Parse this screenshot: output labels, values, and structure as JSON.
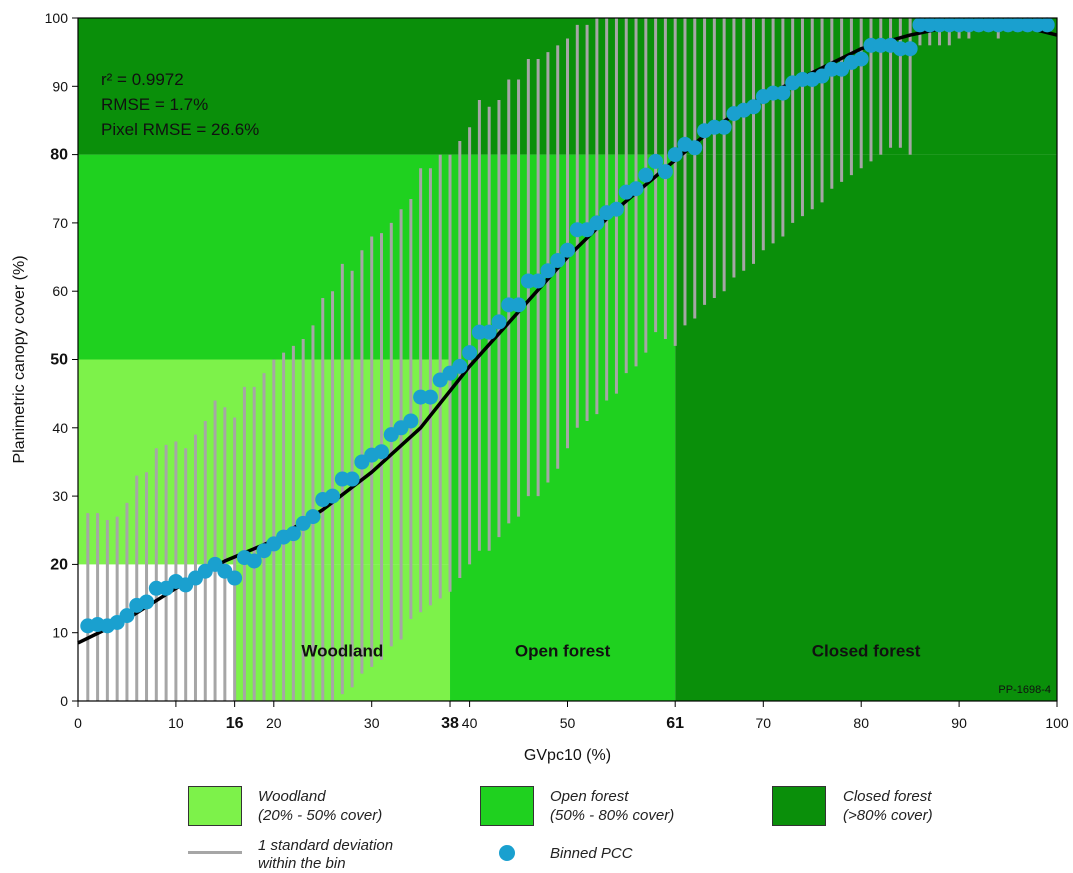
{
  "chart_data": {
    "type": "scatter",
    "xlabel": "GVpc10 (%)",
    "ylabel": "Planimetric canopy cover (%)",
    "xlim": [
      0,
      100
    ],
    "ylim": [
      0,
      100
    ],
    "x_ticks": [
      {
        "value": 0,
        "label": "0",
        "bold": false
      },
      {
        "value": 10,
        "label": "10",
        "bold": false
      },
      {
        "value": 16,
        "label": "16",
        "bold": true
      },
      {
        "value": 20,
        "label": "20",
        "bold": false
      },
      {
        "value": 30,
        "label": "30",
        "bold": false
      },
      {
        "value": 38,
        "label": "38",
        "bold": true
      },
      {
        "value": 40,
        "label": "40",
        "bold": false
      },
      {
        "value": 50,
        "label": "50",
        "bold": false
      },
      {
        "value": 61,
        "label": "61",
        "bold": true
      },
      {
        "value": 70,
        "label": "70",
        "bold": false
      },
      {
        "value": 80,
        "label": "80",
        "bold": false
      },
      {
        "value": 90,
        "label": "90",
        "bold": false
      },
      {
        "value": 100,
        "label": "100",
        "bold": false
      }
    ],
    "y_ticks": [
      {
        "value": 0,
        "label": "0",
        "bold": false
      },
      {
        "value": 10,
        "label": "10",
        "bold": false
      },
      {
        "value": 20,
        "label": "20",
        "bold": true
      },
      {
        "value": 30,
        "label": "30",
        "bold": false
      },
      {
        "value": 40,
        "label": "40",
        "bold": false
      },
      {
        "value": 50,
        "label": "50",
        "bold": true
      },
      {
        "value": 60,
        "label": "60",
        "bold": false
      },
      {
        "value": 70,
        "label": "70",
        "bold": false
      },
      {
        "value": 80,
        "label": "80",
        "bold": true
      },
      {
        "value": 90,
        "label": "90",
        "bold": false
      },
      {
        "value": 100,
        "label": "100",
        "bold": false
      }
    ],
    "regions": [
      {
        "x0": 0,
        "x1": 16,
        "y0": 0,
        "y1": 20,
        "color": "#ffffff"
      },
      {
        "x0": 0,
        "x1": 38,
        "y0": 20,
        "y1": 50,
        "color": "#7df24a"
      },
      {
        "x0": 16,
        "x1": 38,
        "y0": 0,
        "y1": 20,
        "color": "#7df24a"
      },
      {
        "x0": 0,
        "x1": 61,
        "y0": 50,
        "y1": 80,
        "color": "#1fd11f"
      },
      {
        "x0": 38,
        "x1": 61,
        "y0": 0,
        "y1": 50,
        "color": "#1fd11f"
      },
      {
        "x0": 0,
        "x1": 100,
        "y0": 80,
        "y1": 100,
        "color": "#0a8f0a"
      },
      {
        "x0": 61,
        "x1": 100,
        "y0": 0,
        "y1": 80,
        "color": "#0a8f0a"
      }
    ],
    "zone_labels": [
      {
        "text": "Woodland",
        "x": 27,
        "y": 6.5
      },
      {
        "text": "Open forest",
        "x": 49.5,
        "y": 6.5
      },
      {
        "text": "Closed forest",
        "x": 80.5,
        "y": 6.5
      }
    ],
    "stats": [
      "r² = 0.9972",
      "RMSE = 1.7%",
      "Pixel RMSE = 26.6%"
    ],
    "corner_label": "PP-1698-4",
    "fit_curve": [
      [
        0,
        8.5
      ],
      [
        5,
        12
      ],
      [
        10,
        16.5
      ],
      [
        15,
        20.5
      ],
      [
        20,
        23.5
      ],
      [
        25,
        28
      ],
      [
        30,
        33.5
      ],
      [
        35,
        40
      ],
      [
        40,
        49
      ],
      [
        45,
        57
      ],
      [
        50,
        65
      ],
      [
        55,
        72
      ],
      [
        60,
        78
      ],
      [
        65,
        84
      ],
      [
        70,
        88.5
      ],
      [
        75,
        92
      ],
      [
        80,
        95.5
      ],
      [
        85,
        97.5
      ],
      [
        90,
        99
      ],
      [
        95,
        99.3
      ],
      [
        100,
        97.5
      ]
    ],
    "series": [
      {
        "name": "Binned PCC",
        "color": "#1aa0cf",
        "points": [
          [
            1,
            11
          ],
          [
            2,
            11.2
          ],
          [
            3,
            11
          ],
          [
            4,
            11.5
          ],
          [
            5,
            12.5
          ],
          [
            6,
            14
          ],
          [
            7,
            14.5
          ],
          [
            8,
            16.5
          ],
          [
            9,
            16.5
          ],
          [
            10,
            17.5
          ],
          [
            11,
            17
          ],
          [
            12,
            18
          ],
          [
            13,
            19
          ],
          [
            14,
            20
          ],
          [
            15,
            19
          ],
          [
            16,
            18
          ],
          [
            17,
            21
          ],
          [
            18,
            20.5
          ],
          [
            19,
            22
          ],
          [
            20,
            23
          ],
          [
            21,
            24
          ],
          [
            22,
            24.5
          ],
          [
            23,
            26
          ],
          [
            24,
            27
          ],
          [
            25,
            29.5
          ],
          [
            26,
            30
          ],
          [
            27,
            32.5
          ],
          [
            28,
            32.5
          ],
          [
            29,
            35
          ],
          [
            30,
            36
          ],
          [
            31,
            36.5
          ],
          [
            32,
            39
          ],
          [
            33,
            40
          ],
          [
            34,
            41
          ],
          [
            35,
            44.5
          ],
          [
            36,
            44.5
          ],
          [
            37,
            47
          ],
          [
            38,
            48
          ],
          [
            39,
            49
          ],
          [
            40,
            51
          ],
          [
            41,
            54
          ],
          [
            42,
            54
          ],
          [
            43,
            55.5
          ],
          [
            44,
            58
          ],
          [
            45,
            58
          ],
          [
            46,
            61.5
          ],
          [
            47,
            61.5
          ],
          [
            48,
            63
          ],
          [
            49,
            64.5
          ],
          [
            50,
            66
          ],
          [
            51,
            69
          ],
          [
            52,
            69
          ],
          [
            53,
            70
          ],
          [
            54,
            71.5
          ],
          [
            55,
            72
          ],
          [
            56,
            74.5
          ],
          [
            57,
            75
          ],
          [
            58,
            77
          ],
          [
            59,
            79
          ],
          [
            60,
            77.5
          ],
          [
            61,
            80
          ],
          [
            62,
            81.5
          ],
          [
            63,
            81
          ],
          [
            64,
            83.5
          ],
          [
            65,
            84
          ],
          [
            66,
            84
          ],
          [
            67,
            86
          ],
          [
            68,
            86.5
          ],
          [
            69,
            87
          ],
          [
            70,
            88.5
          ],
          [
            71,
            89
          ],
          [
            72,
            89
          ],
          [
            73,
            90.5
          ],
          [
            74,
            91
          ],
          [
            75,
            91
          ],
          [
            76,
            91.5
          ],
          [
            77,
            92.5
          ],
          [
            78,
            92.5
          ],
          [
            79,
            93.5
          ],
          [
            80,
            94
          ],
          [
            81,
            96
          ],
          [
            82,
            96
          ],
          [
            83,
            96
          ],
          [
            84,
            95.5
          ],
          [
            85,
            95.5
          ],
          [
            86,
            99
          ],
          [
            87,
            99
          ],
          [
            88,
            99
          ],
          [
            89,
            99
          ],
          [
            90,
            99
          ],
          [
            91,
            99
          ],
          [
            92,
            99
          ],
          [
            93,
            99
          ],
          [
            94,
            99
          ],
          [
            95,
            99
          ],
          [
            96,
            99
          ],
          [
            97,
            99
          ],
          [
            98,
            99
          ],
          [
            99,
            99
          ]
        ]
      },
      {
        "name": "1 standard deviation within the bin",
        "color": "#a6a6a6",
        "sd_bars": [
          [
            1,
            0,
            27.5
          ],
          [
            2,
            0,
            27.5
          ],
          [
            3,
            0,
            26.5
          ],
          [
            4,
            0,
            27
          ],
          [
            5,
            0,
            29
          ],
          [
            6,
            0,
            33
          ],
          [
            7,
            0,
            33.5
          ],
          [
            8,
            0,
            37
          ],
          [
            9,
            0,
            37.5
          ],
          [
            10,
            0,
            38
          ],
          [
            11,
            0,
            37
          ],
          [
            12,
            0,
            39
          ],
          [
            13,
            0,
            41
          ],
          [
            14,
            0,
            44
          ],
          [
            15,
            0,
            43
          ],
          [
            16,
            0,
            41.5
          ],
          [
            17,
            0,
            46
          ],
          [
            18,
            0,
            46
          ],
          [
            19,
            0,
            48
          ],
          [
            20,
            0,
            50
          ],
          [
            21,
            0,
            51
          ],
          [
            22,
            0,
            52
          ],
          [
            23,
            0,
            53
          ],
          [
            24,
            0,
            55
          ],
          [
            25,
            0,
            59
          ],
          [
            26,
            0,
            60
          ],
          [
            27,
            1,
            64
          ],
          [
            28,
            2,
            63
          ],
          [
            29,
            4,
            66
          ],
          [
            30,
            5,
            68
          ],
          [
            31,
            6,
            68.5
          ],
          [
            32,
            8,
            70
          ],
          [
            33,
            9,
            72
          ],
          [
            34,
            12,
            73.5
          ],
          [
            35,
            13,
            78
          ],
          [
            36,
            14,
            78
          ],
          [
            37,
            15,
            80
          ],
          [
            38,
            16,
            80
          ],
          [
            39,
            18,
            82
          ],
          [
            40,
            20,
            84
          ],
          [
            41,
            22,
            88
          ],
          [
            42,
            22,
            87
          ],
          [
            43,
            24,
            88
          ],
          [
            44,
            26,
            91
          ],
          [
            45,
            27,
            91
          ],
          [
            46,
            30,
            94
          ],
          [
            47,
            30,
            94
          ],
          [
            48,
            32,
            95
          ],
          [
            49,
            34,
            96
          ],
          [
            50,
            37,
            97
          ],
          [
            51,
            40,
            99
          ],
          [
            52,
            41,
            99
          ],
          [
            53,
            42,
            100
          ],
          [
            54,
            44,
            100
          ],
          [
            55,
            45,
            100
          ],
          [
            56,
            48,
            100
          ],
          [
            57,
            49,
            100
          ],
          [
            58,
            51,
            100
          ],
          [
            59,
            54,
            100
          ],
          [
            60,
            53,
            100
          ],
          [
            61,
            52,
            100
          ],
          [
            62,
            55,
            100
          ],
          [
            63,
            56,
            100
          ],
          [
            64,
            58,
            100
          ],
          [
            65,
            59,
            100
          ],
          [
            66,
            60,
            100
          ],
          [
            67,
            62,
            100
          ],
          [
            68,
            63,
            100
          ],
          [
            69,
            64,
            100
          ],
          [
            70,
            66,
            100
          ],
          [
            71,
            67,
            100
          ],
          [
            72,
            68,
            100
          ],
          [
            73,
            70,
            100
          ],
          [
            74,
            71,
            100
          ],
          [
            75,
            72,
            100
          ],
          [
            76,
            73,
            100
          ],
          [
            77,
            75,
            100
          ],
          [
            78,
            76,
            100
          ],
          [
            79,
            77,
            100
          ],
          [
            80,
            78,
            100
          ],
          [
            81,
            79,
            100
          ],
          [
            82,
            80,
            100
          ],
          [
            83,
            81,
            100
          ],
          [
            84,
            81,
            100
          ],
          [
            85,
            80,
            100
          ],
          [
            86,
            96,
            100
          ],
          [
            87,
            96,
            100
          ],
          [
            88,
            96,
            100
          ],
          [
            89,
            96,
            100
          ],
          [
            90,
            97,
            100
          ],
          [
            91,
            97,
            100
          ],
          [
            92,
            98,
            100
          ],
          [
            93,
            98,
            100
          ],
          [
            94,
            97,
            100
          ],
          [
            95,
            98,
            100
          ],
          [
            96,
            99,
            100
          ],
          [
            97,
            99,
            100
          ],
          [
            98,
            99,
            100
          ],
          [
            99,
            99,
            100
          ]
        ]
      }
    ]
  },
  "legend": {
    "woodland_title": "Woodland",
    "woodland_sub": "(20% - 50% cover)",
    "woodland_color": "#7df24a",
    "open_title": "Open forest",
    "open_sub": "(50% - 80% cover)",
    "open_color": "#1fd11f",
    "closed_title": "Closed forest",
    "closed_sub": "(>80% cover)",
    "closed_color": "#0a8f0a",
    "sd_line1": "1 standard deviation",
    "sd_line2": "within the bin",
    "pcc_label": "Binned PCC"
  }
}
